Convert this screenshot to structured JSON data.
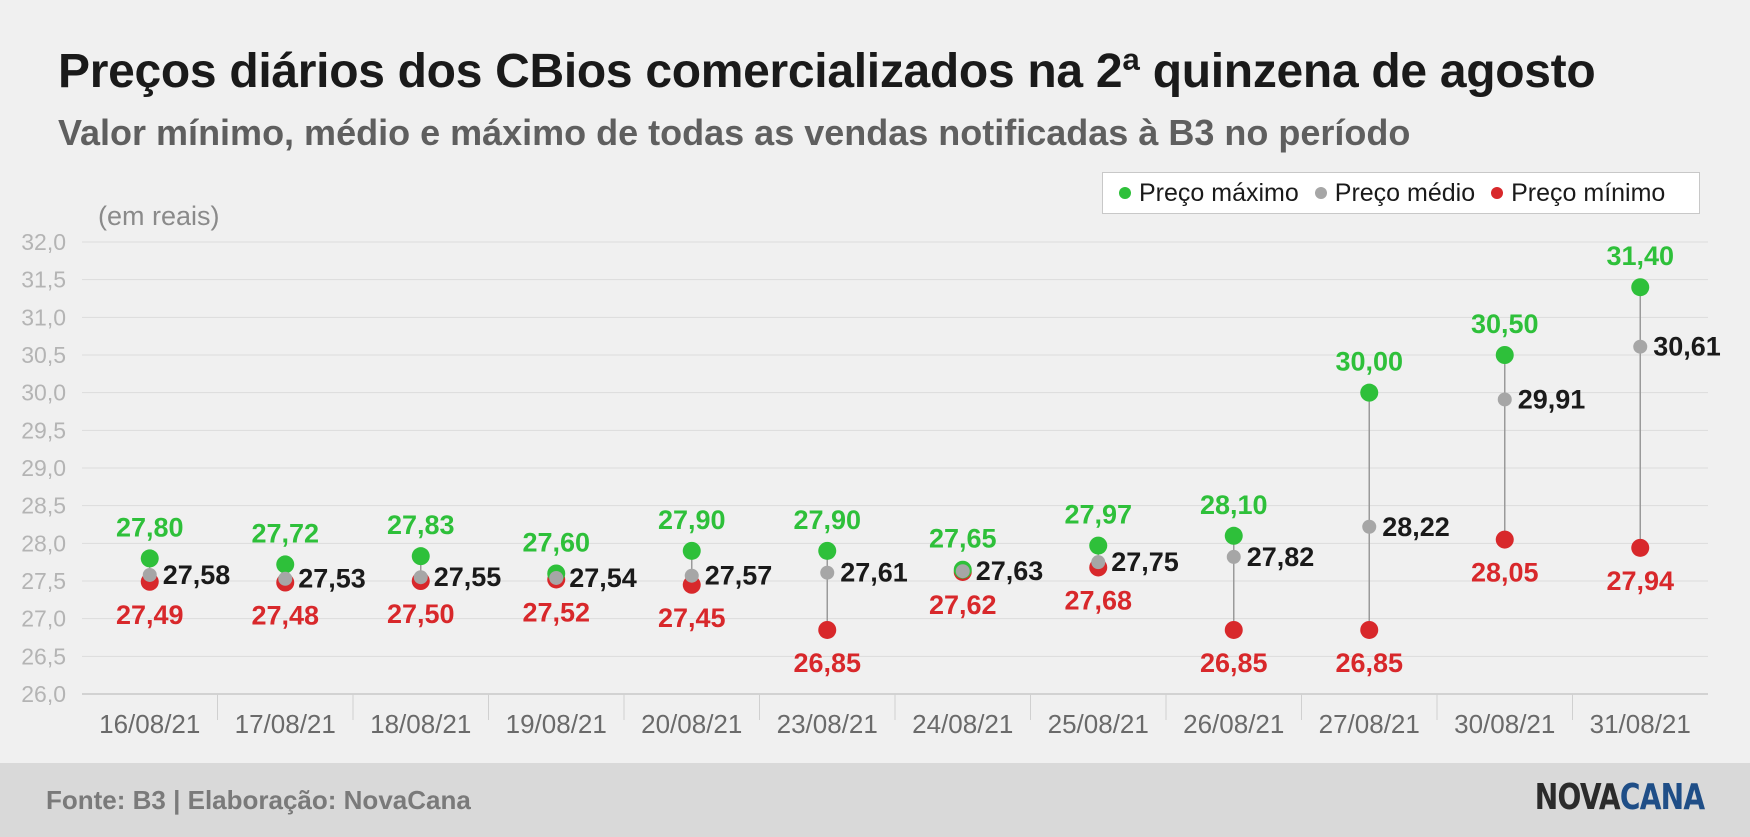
{
  "title": "Preços diários dos CBios comercializados na 2ª quinzena de agosto",
  "subtitle": "Valor mínimo, médio e máximo de todas as vendas notificadas à B3 no período",
  "source": "Fonte: B3 | Elaboração: NovaCana",
  "logo": {
    "part1": "NOVA",
    "part2": "CANA"
  },
  "colors": {
    "max": "#2ec03a",
    "avg": "#a6a6a6",
    "min": "#d8282b",
    "grid": "#dcdcdc",
    "tick": "#b4b4b4",
    "avg_label": "#1a1a1a"
  },
  "legend": [
    {
      "label": "Preço máximo",
      "color": "#2ec03a"
    },
    {
      "label": "Preço médio",
      "color": "#a6a6a6"
    },
    {
      "label": "Preço mínimo",
      "color": "#d8282b"
    }
  ],
  "chart_data": {
    "type": "dot-range",
    "unit_note": "(em reais)",
    "ylim": [
      26.0,
      32.0
    ],
    "yticks": [
      "26,0",
      "26,5",
      "27,0",
      "27,5",
      "28,0",
      "28,5",
      "29,0",
      "29,5",
      "30,0",
      "30,5",
      "31,0",
      "31,5",
      "32,0"
    ],
    "grid": true,
    "legend_position": "top-right",
    "categories": [
      "16/08/21",
      "17/08/21",
      "18/08/21",
      "19/08/21",
      "20/08/21",
      "23/08/21",
      "24/08/21",
      "25/08/21",
      "26/08/21",
      "27/08/21",
      "30/08/21",
      "31/08/21"
    ],
    "series": [
      {
        "name": "Preço máximo",
        "values": [
          27.8,
          27.72,
          27.83,
          27.6,
          27.9,
          27.9,
          27.65,
          27.97,
          28.1,
          30.0,
          30.5,
          31.4
        ],
        "labels": [
          "27,80",
          "27,72",
          "27,83",
          "27,60",
          "27,90",
          "27,90",
          "27,65",
          "27,97",
          "28,10",
          "30,00",
          "30,50",
          "31,40"
        ]
      },
      {
        "name": "Preço médio",
        "values": [
          27.58,
          27.53,
          27.55,
          27.54,
          27.57,
          27.61,
          27.63,
          27.75,
          27.82,
          28.22,
          29.91,
          30.61
        ],
        "labels": [
          "27,58",
          "27,53",
          "27,55",
          "27,54",
          "27,57",
          "27,61",
          "27,63",
          "27,75",
          "27,82",
          "28,22",
          "29,91",
          "30,61"
        ]
      },
      {
        "name": "Preço mínimo",
        "values": [
          27.49,
          27.48,
          27.5,
          27.52,
          27.45,
          26.85,
          27.62,
          27.68,
          26.85,
          26.85,
          28.05,
          27.94
        ],
        "labels": [
          "27,49",
          "27,48",
          "27,50",
          "27,52",
          "27,45",
          "26,85",
          "27,62",
          "27,68",
          "26,85",
          "26,85",
          "28,05",
          "27,94"
        ]
      }
    ]
  }
}
